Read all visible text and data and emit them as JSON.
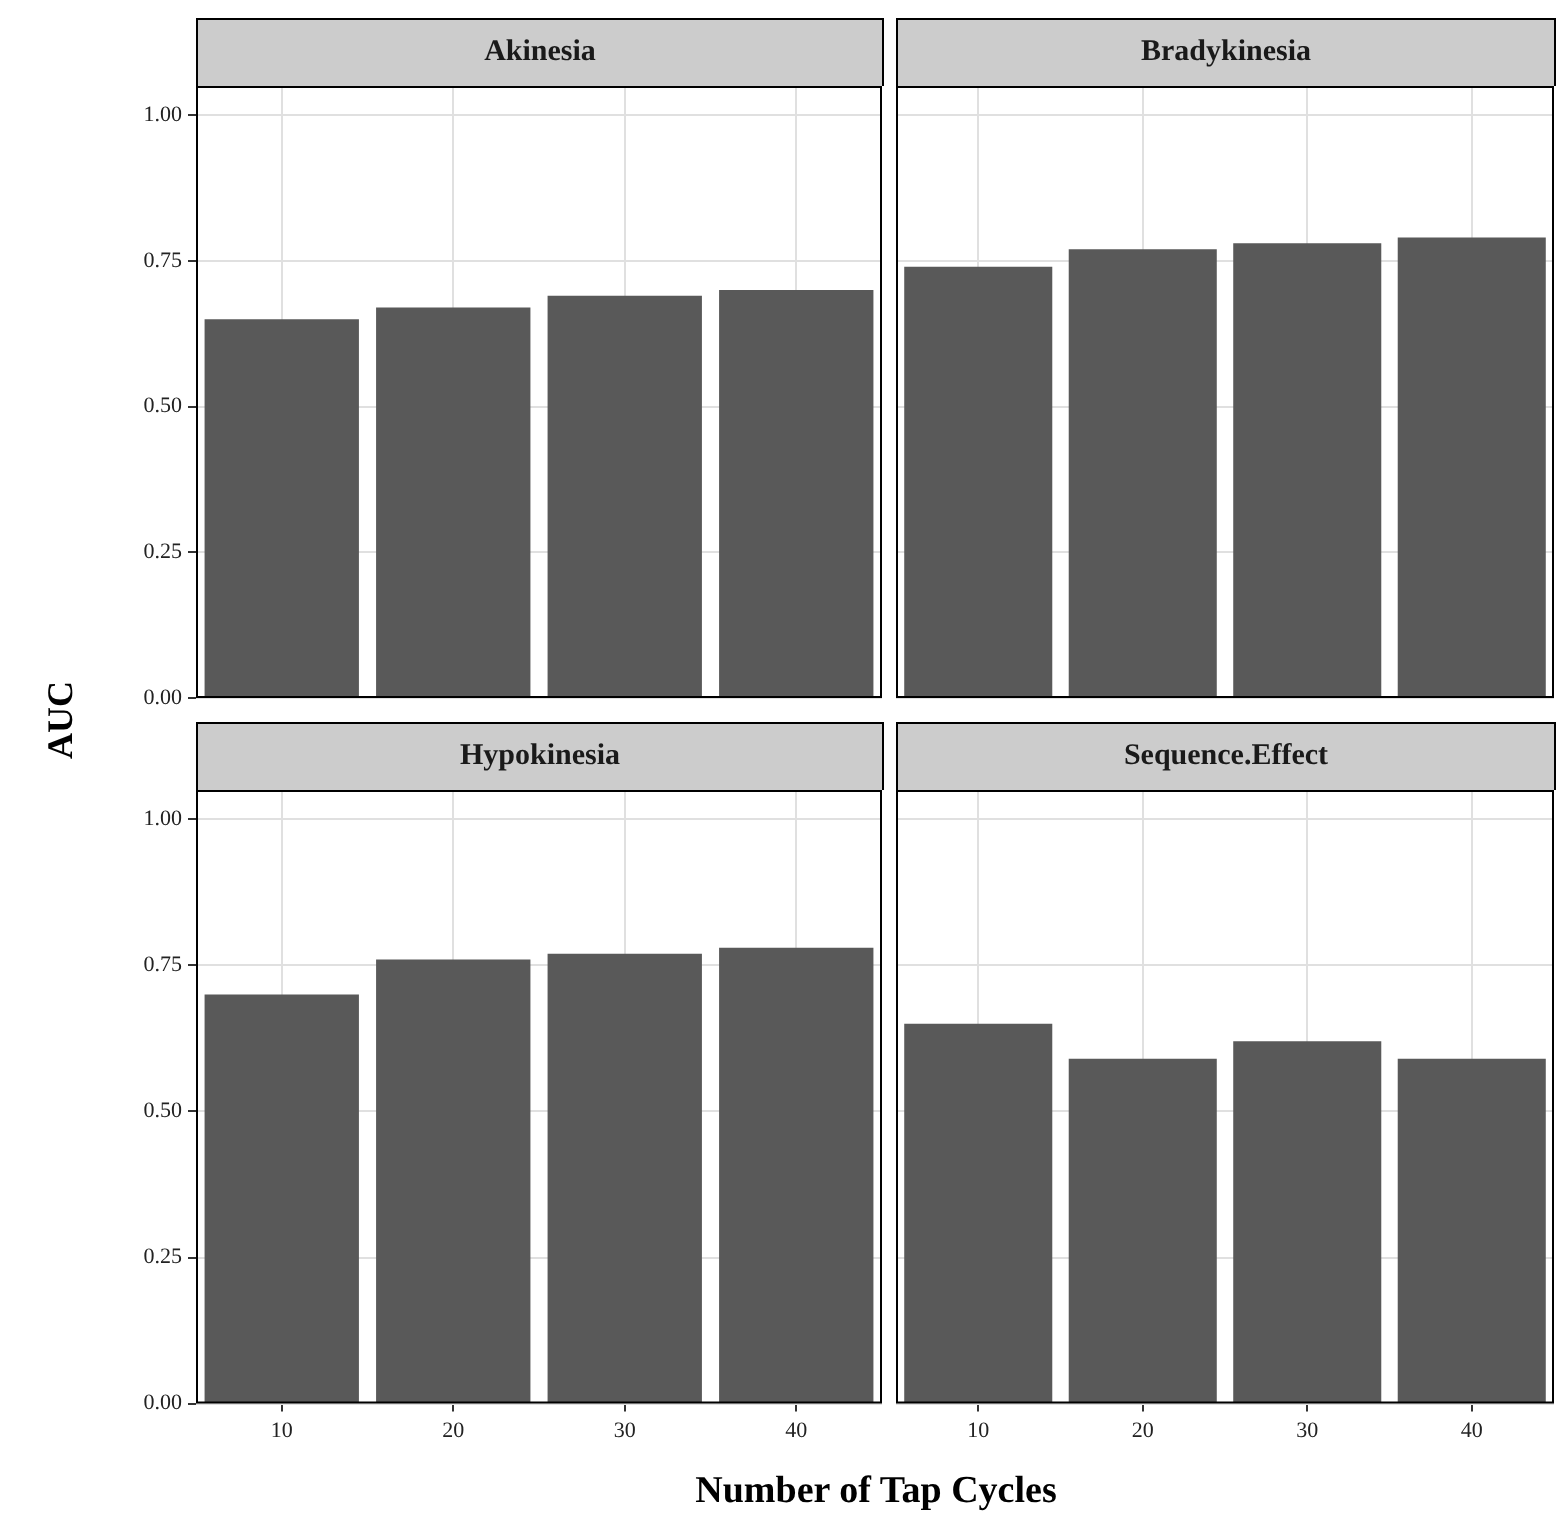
{
  "chart_data": [
    {
      "type": "bar",
      "title": "Akinesia",
      "ylabel": "AUC",
      "categories": [
        "10",
        "20",
        "30",
        "40"
      ],
      "series": [
        {
          "color": "#595959",
          "values": [
            0.65,
            0.67,
            0.69,
            0.7
          ]
        }
      ],
      "ylim": [
        0,
        1.05
      ],
      "yticks": [
        {
          "value": 0,
          "label": "0.00"
        },
        {
          "value": 0.25,
          "label": "0.25"
        },
        {
          "value": 0.5,
          "label": "0.50"
        },
        {
          "value": 0.75,
          "label": "0.75"
        },
        {
          "value": 1,
          "label": "1.00"
        }
      ],
      "grid": true,
      "legend": false,
      "tick_labels": "y"
    },
    {
      "type": "bar",
      "title": "Bradykinesia",
      "categories": [
        "10",
        "20",
        "30",
        "40"
      ],
      "series": [
        {
          "color": "#595959",
          "values": [
            0.74,
            0.77,
            0.78,
            0.79
          ]
        }
      ],
      "ylim": [
        0,
        1.05
      ],
      "yticks": [
        0,
        0.25,
        0.5,
        0.75,
        1
      ],
      "grid": true,
      "legend": false,
      "tick_labels": false
    },
    {
      "type": "bar",
      "title": "Hypokinesia",
      "xlabel": "Number of Tap Cycles",
      "categories": [
        "10",
        "20",
        "30",
        "40"
      ],
      "series": [
        {
          "color": "#595959",
          "values": [
            0.7,
            0.76,
            0.77,
            0.78
          ]
        }
      ],
      "ylim": [
        0,
        1.05
      ],
      "yticks": [
        {
          "value": 0,
          "label": "0.00"
        },
        {
          "value": 0.25,
          "label": "0.25"
        },
        {
          "value": 0.5,
          "label": "0.50"
        },
        {
          "value": 0.75,
          "label": "0.75"
        },
        {
          "value": 1,
          "label": "1.00"
        }
      ],
      "grid": true,
      "legend": false
    },
    {
      "type": "bar",
      "title": "Sequence.Effect",
      "categories": [
        "10",
        "20",
        "30",
        "40"
      ],
      "series": [
        {
          "color": "#595959",
          "values": [
            0.65,
            0.59,
            0.62,
            0.59
          ]
        }
      ],
      "ylim": [
        0,
        1.05
      ],
      "yticks": [
        0,
        0.25,
        0.5,
        0.75,
        1
      ],
      "grid": true,
      "legend": false,
      "tick_labels": "x"
    }
  ]
}
